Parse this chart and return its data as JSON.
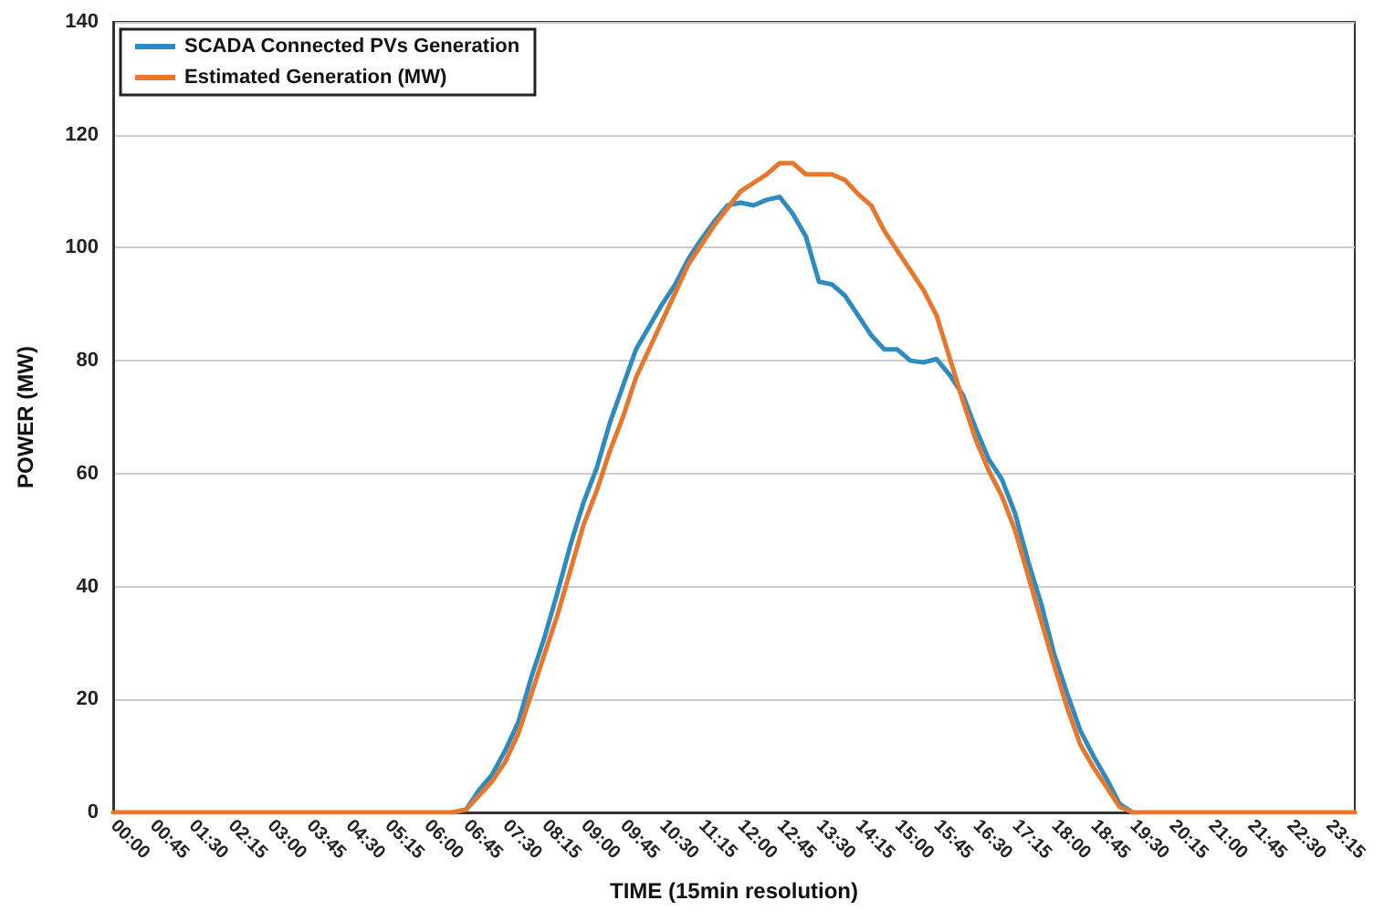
{
  "chart_data": {
    "type": "line",
    "xlabel": "TIME (15min resolution)",
    "ylabel": "POWER (MW)",
    "categories": [
      "00:00",
      null,
      null,
      "00:45",
      null,
      null,
      "01:30",
      null,
      null,
      "02:15",
      null,
      null,
      "03:00",
      null,
      null,
      "03:45",
      null,
      null,
      "04:30",
      null,
      null,
      "05:15",
      null,
      null,
      "06:00",
      null,
      null,
      "06:45",
      null,
      null,
      "07:30",
      null,
      null,
      "08:15",
      null,
      null,
      "09:00",
      null,
      null,
      "09:45",
      null,
      null,
      "10:30",
      null,
      null,
      "11:15",
      null,
      null,
      "12:00",
      null,
      null,
      "12:45",
      null,
      null,
      "13:30",
      null,
      null,
      "14:15",
      null,
      null,
      "15:00",
      null,
      null,
      "15:45",
      null,
      null,
      "16:30",
      null,
      null,
      "17:15",
      null,
      null,
      "18:00",
      null,
      null,
      "18:45",
      null,
      null,
      "19:30",
      null,
      null,
      "20:15",
      null,
      null,
      "21:00",
      null,
      null,
      "21:45",
      null,
      null,
      "22:30",
      null,
      null,
      "23:15",
      null,
      null
    ],
    "series": [
      {
        "name": "SCADA Connected PVs Generation",
        "color": "#2e8bc0",
        "values": [
          null,
          null,
          null,
          null,
          null,
          null,
          null,
          null,
          null,
          null,
          null,
          null,
          null,
          null,
          null,
          null,
          null,
          null,
          null,
          null,
          null,
          null,
          null,
          null,
          null,
          null,
          0,
          0.5,
          4,
          6.7,
          11,
          16,
          24,
          31,
          39,
          47.5,
          55,
          61,
          69,
          75.5,
          82,
          86,
          90,
          93.5,
          98,
          101.5,
          104.7,
          107.5,
          108,
          107.5,
          108.5,
          109,
          106,
          102,
          94,
          93.5,
          91.5,
          88,
          84.5,
          82,
          82,
          80,
          79.7,
          80.3,
          77.5,
          74,
          68,
          62.5,
          59,
          53,
          44.5,
          37,
          28,
          21,
          14.5,
          10,
          6,
          1.5,
          0,
          null,
          null,
          null,
          null,
          null,
          null,
          null,
          null,
          null,
          null,
          null,
          null,
          null,
          null,
          null,
          null,
          null
        ]
      },
      {
        "name": "Estimated Generation (MW)",
        "color": "#e8772e",
        "values": [
          0,
          0,
          0,
          0,
          0,
          0,
          0,
          0,
          0,
          0,
          0,
          0,
          0,
          0,
          0,
          0,
          0,
          0,
          0,
          0,
          0,
          0,
          0,
          0,
          0,
          0,
          0,
          0.5,
          3,
          5.5,
          9,
          14,
          21,
          28,
          35,
          43,
          51,
          57,
          64,
          70,
          77,
          82,
          87,
          92,
          97,
          100.5,
          104,
          107,
          110,
          111.5,
          113,
          115,
          115,
          113,
          113,
          113,
          112,
          109.5,
          107.5,
          103,
          99.5,
          96,
          92.5,
          88,
          80.5,
          73,
          66,
          60.5,
          56,
          50,
          42,
          34,
          26,
          18.5,
          12,
          8,
          4.5,
          1,
          0,
          0,
          0,
          0,
          0,
          0,
          0,
          0,
          0,
          0,
          0,
          0,
          0,
          0,
          0,
          0,
          0,
          0
        ]
      }
    ],
    "ylim": [
      0,
      140
    ],
    "yticks": [
      0,
      20,
      40,
      60,
      80,
      100,
      120,
      140
    ],
    "grid": "y",
    "legend": "top left",
    "marker": "none",
    "line_style": "solid"
  }
}
